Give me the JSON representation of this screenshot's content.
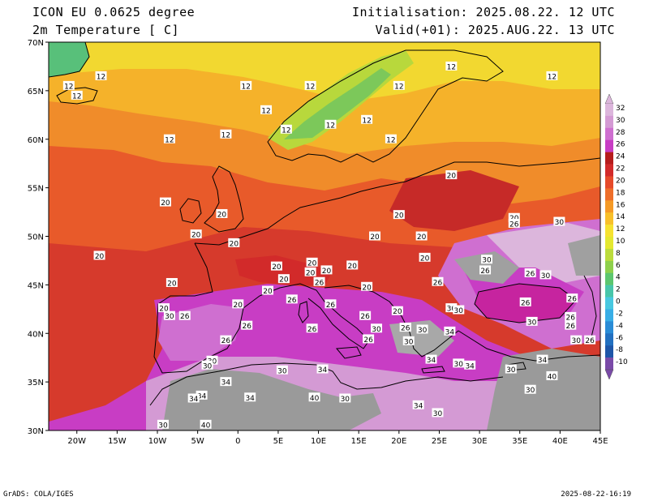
{
  "header": {
    "model": "ICON EU 0.0625 degree",
    "field": "2m Temperature [ C]",
    "init": "Initialisation: 2025.08.22. 12 UTC",
    "valid": "Valid(+01): 2025.AUG.22. 13 UTC"
  },
  "footer": {
    "credit": "GrADS: COLA/IGES",
    "timestamp": "2025-08-22-16:19"
  },
  "axes": {
    "lon_labels": [
      "20W",
      "15W",
      "10W",
      "5W",
      "0",
      "5E",
      "10E",
      "15E",
      "20E",
      "25E",
      "30E",
      "35E",
      "40E",
      "45E"
    ],
    "lat_labels": [
      "70N",
      "65N",
      "60N",
      "55N",
      "50N",
      "45N",
      "40N",
      "35N",
      "30N"
    ]
  },
  "colorbar": {
    "levels": [
      "32",
      "30",
      "28",
      "26",
      "24",
      "22",
      "20",
      "18",
      "16",
      "14",
      "12",
      "10",
      "8",
      "6",
      "4",
      "2",
      "0",
      "-2",
      "-4",
      "-6",
      "-8",
      "-10"
    ],
    "colors": [
      "#dcb6dc",
      "#d49ad4",
      "#cf6fd0",
      "#c83dc4",
      "#b61c1c",
      "#d22a2a",
      "#e64a2a",
      "#ee6e2a",
      "#f59a26",
      "#f8c02a",
      "#f6e230",
      "#e4e830",
      "#bcdc3c",
      "#8ed04c",
      "#5cc66e",
      "#48c6aa",
      "#48c8e0",
      "#38aee6",
      "#2a8cd6",
      "#2270c0",
      "#1e56a8",
      "#7a4aa8"
    ]
  },
  "contour_labels": [
    {
      "text": "12",
      "lon": -17,
      "lat": 66.5
    },
    {
      "text": "12",
      "lon": -21,
      "lat": 65.5
    },
    {
      "text": "12",
      "lon": -20,
      "lat": 64.5
    },
    {
      "text": "12",
      "lon": 1,
      "lat": 65.5
    },
    {
      "text": "12",
      "lon": 3.5,
      "lat": 63
    },
    {
      "text": "12",
      "lon": 9,
      "lat": 65.5
    },
    {
      "text": "12",
      "lon": 20,
      "lat": 65.5
    },
    {
      "text": "12",
      "lon": 26.5,
      "lat": 67.5
    },
    {
      "text": "12",
      "lon": 39,
      "lat": 66.5
    },
    {
      "text": "12",
      "lon": 6,
      "lat": 61
    },
    {
      "text": "12",
      "lon": 11.5,
      "lat": 61.5
    },
    {
      "text": "12",
      "lon": 16,
      "lat": 62
    },
    {
      "text": "12",
      "lon": 19,
      "lat": 60
    },
    {
      "text": "12",
      "lon": -1.5,
      "lat": 60.5
    },
    {
      "text": "12",
      "lon": -8.5,
      "lat": 60
    },
    {
      "text": "20",
      "lon": -9,
      "lat": 53.5
    },
    {
      "text": "20",
      "lon": -2,
      "lat": 52.3
    },
    {
      "text": "20",
      "lon": -5.2,
      "lat": 50.2
    },
    {
      "text": "20",
      "lon": -0.5,
      "lat": 49.3
    },
    {
      "text": "20",
      "lon": -17.2,
      "lat": 48
    },
    {
      "text": "20",
      "lon": -8.2,
      "lat": 45.2
    },
    {
      "text": "20",
      "lon": -9.2,
      "lat": 42.6
    },
    {
      "text": "20",
      "lon": 0,
      "lat": 43
    },
    {
      "text": "20",
      "lon": 26.5,
      "lat": 56.3
    },
    {
      "text": "20",
      "lon": 20,
      "lat": 52.2
    },
    {
      "text": "20",
      "lon": 17,
      "lat": 50
    },
    {
      "text": "20",
      "lon": 22.8,
      "lat": 50
    },
    {
      "text": "20",
      "lon": 23.2,
      "lat": 47.8
    },
    {
      "text": "20",
      "lon": 4.8,
      "lat": 46.9
    },
    {
      "text": "20",
      "lon": 9.2,
      "lat": 47.3
    },
    {
      "text": "20",
      "lon": 9,
      "lat": 46.3
    },
    {
      "text": "20",
      "lon": 14.2,
      "lat": 47
    },
    {
      "text": "20",
      "lon": 11,
      "lat": 46.5
    },
    {
      "text": "20",
      "lon": 5.7,
      "lat": 45.6
    },
    {
      "text": "20",
      "lon": 3.7,
      "lat": 44.4
    },
    {
      "text": "20",
      "lon": 16,
      "lat": 44.8
    },
    {
      "text": "20",
      "lon": 19.8,
      "lat": 42.3
    },
    {
      "text": "20",
      "lon": 34.3,
      "lat": 51.9
    },
    {
      "text": "26",
      "lon": 10.1,
      "lat": 45.3
    },
    {
      "text": "26",
      "lon": -6.6,
      "lat": 41.8
    },
    {
      "text": "26",
      "lon": -1.5,
      "lat": 39.3
    },
    {
      "text": "26",
      "lon": 1.1,
      "lat": 40.8
    },
    {
      "text": "26",
      "lon": 6.7,
      "lat": 43.5
    },
    {
      "text": "26",
      "lon": 11.5,
      "lat": 43
    },
    {
      "text": "26",
      "lon": 15.8,
      "lat": 41.8
    },
    {
      "text": "26",
      "lon": 9.2,
      "lat": 40.5
    },
    {
      "text": "26",
      "lon": 16.2,
      "lat": 39.4
    },
    {
      "text": "26",
      "lon": 20.8,
      "lat": 40.6
    },
    {
      "text": "26",
      "lon": 24.8,
      "lat": 45.3
    },
    {
      "text": "26",
      "lon": 34.3,
      "lat": 51.3
    },
    {
      "text": "26",
      "lon": 30.7,
      "lat": 46.5
    },
    {
      "text": "26",
      "lon": 36.3,
      "lat": 46.2
    },
    {
      "text": "26",
      "lon": 35.7,
      "lat": 43.2
    },
    {
      "text": "26",
      "lon": 41.5,
      "lat": 43.6
    },
    {
      "text": "26",
      "lon": 41.3,
      "lat": 41.7
    },
    {
      "text": "26",
      "lon": 41.3,
      "lat": 40.8
    },
    {
      "text": "26",
      "lon": 43.7,
      "lat": 39.3
    },
    {
      "text": "26",
      "lon": 20.8,
      "lat": 40.6
    },
    {
      "text": "30",
      "lon": 39.9,
      "lat": 51.5
    },
    {
      "text": "30",
      "lon": 30.9,
      "lat": 47.6
    },
    {
      "text": "30",
      "lon": 38.2,
      "lat": 46
    },
    {
      "text": "30",
      "lon": 26.5,
      "lat": 42.6
    },
    {
      "text": "30",
      "lon": 27.4,
      "lat": 42.4
    },
    {
      "text": "30",
      "lon": 36.5,
      "lat": 41.2
    },
    {
      "text": "30",
      "lon": -8.5,
      "lat": 41.8
    },
    {
      "text": "30",
      "lon": 17.2,
      "lat": 40.5
    },
    {
      "text": "30",
      "lon": 21.2,
      "lat": 39.2
    },
    {
      "text": "30",
      "lon": 22.9,
      "lat": 40.4
    },
    {
      "text": "30",
      "lon": 5.5,
      "lat": 36.2
    },
    {
      "text": "30",
      "lon": -3.2,
      "lat": 37.2
    },
    {
      "text": "30",
      "lon": -3.8,
      "lat": 36.7
    },
    {
      "text": "30",
      "lon": 27.4,
      "lat": 36.9
    },
    {
      "text": "30",
      "lon": 33.9,
      "lat": 36.3
    },
    {
      "text": "30",
      "lon": 36.3,
      "lat": 34.2
    },
    {
      "text": "30",
      "lon": 13.3,
      "lat": 33.3
    },
    {
      "text": "30",
      "lon": 24.8,
      "lat": 31.8
    },
    {
      "text": "30",
      "lon": -9.3,
      "lat": 30.6
    },
    {
      "text": "30",
      "lon": 42,
      "lat": 39.3
    },
    {
      "text": "34",
      "lon": 26.3,
      "lat": 40.2
    },
    {
      "text": "34",
      "lon": 24,
      "lat": 37.3
    },
    {
      "text": "34",
      "lon": 28.8,
      "lat": 36.7
    },
    {
      "text": "34",
      "lon": 37.8,
      "lat": 37.3
    },
    {
      "text": "34",
      "lon": 10.5,
      "lat": 36.3
    },
    {
      "text": "34",
      "lon": -1.5,
      "lat": 35
    },
    {
      "text": "34",
      "lon": -4.5,
      "lat": 33.6
    },
    {
      "text": "34",
      "lon": -5.5,
      "lat": 33.3
    },
    {
      "text": "34",
      "lon": 1.5,
      "lat": 33.4
    },
    {
      "text": "34",
      "lon": 22.4,
      "lat": 32.6
    },
    {
      "text": "40",
      "lon": 39,
      "lat": 35.6
    },
    {
      "text": "40",
      "lon": 9.5,
      "lat": 33.4
    },
    {
      "text": "40",
      "lon": -4,
      "lat": 30.6
    }
  ]
}
